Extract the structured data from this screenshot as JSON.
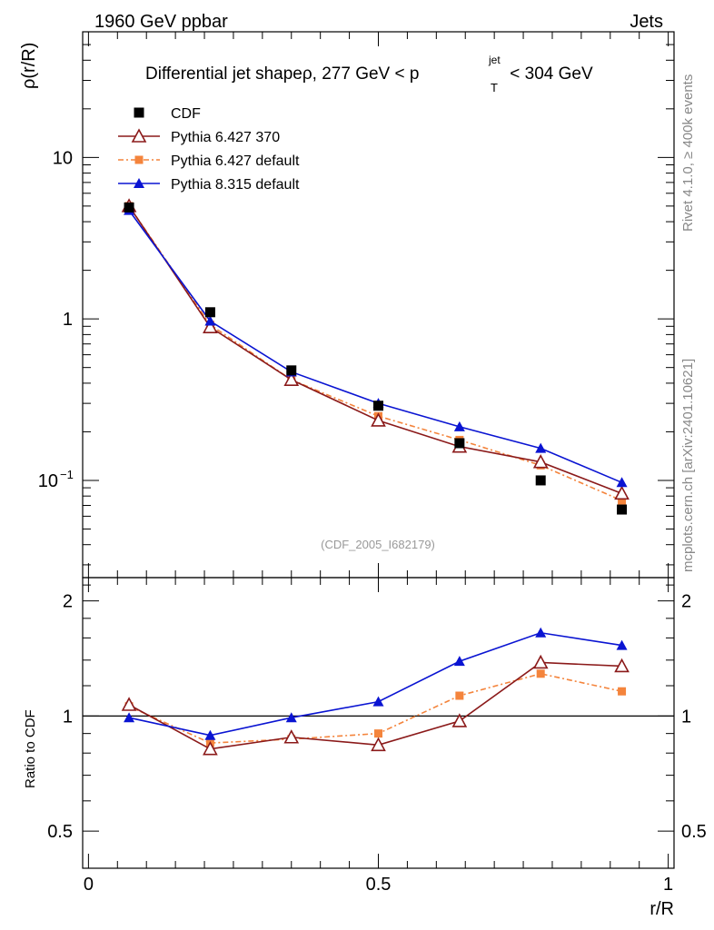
{
  "header": {
    "left": "1960 GeV ppbar",
    "right": "Jets"
  },
  "side_labels": {
    "top": "Rivet 4.1.0, ≥ 400k events",
    "bottom": "mcplots.cern.ch [arXiv:2401.10621]"
  },
  "watermark": "(CDF_2005_I682179)",
  "title": {
    "main": "Differential jet shapeρ, 277 GeV < p",
    "sup": "jet",
    "sub": "T",
    "tail": " < 304 GeV"
  },
  "colors": {
    "cdf": "#000000",
    "py6_370": "#8b1a1a",
    "py6_default": "#f4843c",
    "py8": "#0a14d2"
  },
  "chart_data": [
    {
      "type": "line",
      "panel": "main",
      "ylabel": "ρ(r/R)",
      "yscale": "log",
      "ylim": [
        0.025,
        60
      ],
      "xlim": [
        -0.01,
        1.01
      ],
      "yticks": [
        {
          "value": 10,
          "label": "10"
        },
        {
          "value": 1,
          "label": "1"
        },
        {
          "value": 0.1,
          "label": "10",
          "sup": "−1"
        }
      ],
      "x": [
        0.07,
        0.21,
        0.35,
        0.5,
        0.64,
        0.78,
        0.92
      ],
      "series": [
        {
          "name": "CDF",
          "values": [
            4.9,
            1.1,
            0.48,
            0.29,
            0.17,
            0.1,
            0.066
          ]
        },
        {
          "name": "Pythia 6.427 370",
          "values": [
            5.0,
            0.89,
            0.42,
            0.235,
            0.162,
            0.13,
            0.083
          ]
        },
        {
          "name": "Pythia 6.427 default",
          "values": [
            5.0,
            0.92,
            0.42,
            0.25,
            0.178,
            0.124,
            0.075
          ]
        },
        {
          "name": "Pythia 8.315 default",
          "values": [
            4.7,
            0.97,
            0.47,
            0.3,
            0.215,
            0.158,
            0.097
          ]
        }
      ]
    },
    {
      "type": "line",
      "panel": "ratio",
      "ylabel": "Ratio to CDF",
      "xlabel": "r/R",
      "yscale": "log",
      "ylim": [
        0.4,
        2.3
      ],
      "xlim": [
        -0.01,
        1.01
      ],
      "yticks": [
        {
          "value": 2,
          "label": "2"
        },
        {
          "value": 1,
          "label": "1"
        },
        {
          "value": 0.5,
          "label": "0.5"
        }
      ],
      "xticks": [
        {
          "value": 0,
          "label": "0"
        },
        {
          "value": 0.5,
          "label": "0.5"
        },
        {
          "value": 1,
          "label": "1"
        }
      ],
      "x": [
        0.07,
        0.21,
        0.35,
        0.5,
        0.64,
        0.78,
        0.92
      ],
      "series": [
        {
          "name": "Pythia 6.427 370",
          "values": [
            1.07,
            0.82,
            0.88,
            0.84,
            0.97,
            1.38,
            1.35
          ]
        },
        {
          "name": "Pythia 6.427 default",
          "values": [
            1.06,
            0.85,
            0.87,
            0.9,
            1.13,
            1.29,
            1.16
          ]
        },
        {
          "name": "Pythia 8.315 default",
          "values": [
            0.99,
            0.89,
            0.99,
            1.09,
            1.39,
            1.65,
            1.53
          ]
        }
      ]
    }
  ]
}
